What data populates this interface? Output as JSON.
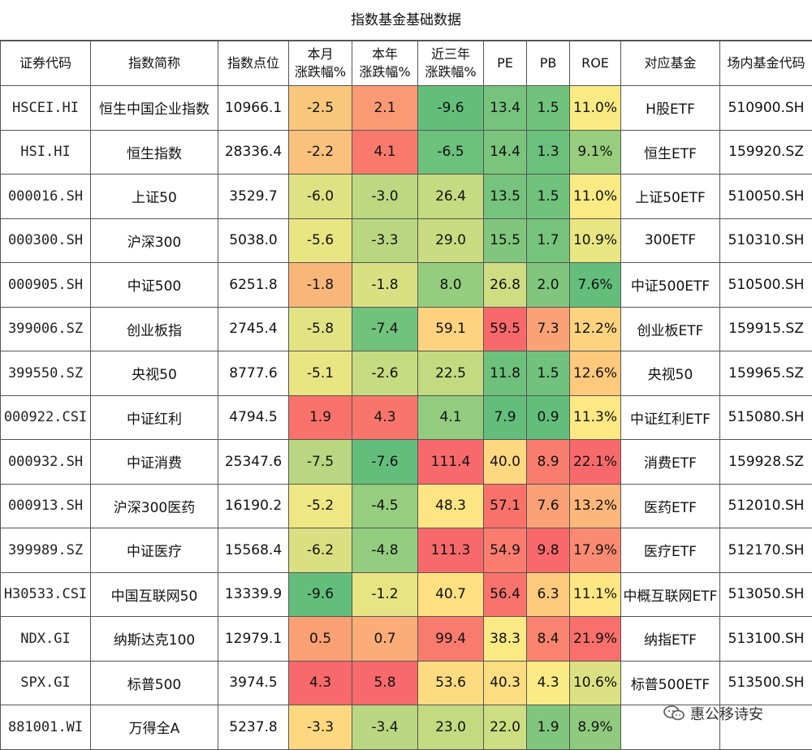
{
  "title": "指数基金基础数据",
  "columns": [
    "证券代码",
    "指数简称",
    "指数点位",
    "本月涨跌幅%",
    "本年涨跌幅%",
    "近三年涨跌幅%",
    "PE",
    "PB",
    "ROE",
    "对应基金",
    "场内基金代码"
  ],
  "header": {
    "code": "证券代码",
    "name": "指数简称",
    "points": "指数点位",
    "month_l1": "本月",
    "month_l2": "涨跌幅%",
    "year_l1": "本年",
    "year_l2": "涨跌幅%",
    "y3_l1": "近三年",
    "y3_l2": "涨跌幅%",
    "pe": "PE",
    "pb": "PB",
    "roe": "ROE",
    "fund": "对应基金",
    "fund_code": "场内基金代码"
  },
  "rows": [
    {
      "code": "HSCEI.HI",
      "name": "恒生中国企业指数",
      "points": "10966.1",
      "month": "-2.5",
      "year": "2.1",
      "y3": "-9.6",
      "pe": "13.4",
      "pb": "1.5",
      "roe": "11.0%",
      "fund": "H股ETF",
      "fund_code": "510900.SH"
    },
    {
      "code": "HSI.HI",
      "name": "恒生指数",
      "points": "28336.4",
      "month": "-2.2",
      "year": "4.1",
      "y3": "-6.5",
      "pe": "14.4",
      "pb": "1.3",
      "roe": "9.1%",
      "fund": "恒生ETF",
      "fund_code": "159920.SZ"
    },
    {
      "code": "000016.SH",
      "name": "上证50",
      "points": "3529.7",
      "month": "-6.0",
      "year": "-3.0",
      "y3": "26.4",
      "pe": "13.5",
      "pb": "1.5",
      "roe": "11.0%",
      "fund": "上证50ETF",
      "fund_code": "510050.SH"
    },
    {
      "code": "000300.SH",
      "name": "沪深300",
      "points": "5038.0",
      "month": "-5.6",
      "year": "-3.3",
      "y3": "29.0",
      "pe": "15.5",
      "pb": "1.7",
      "roe": "10.9%",
      "fund": "300ETF",
      "fund_code": "510310.SH"
    },
    {
      "code": "000905.SH",
      "name": "中证500",
      "points": "6251.8",
      "month": "-1.8",
      "year": "-1.8",
      "y3": "8.0",
      "pe": "26.8",
      "pb": "2.0",
      "roe": "7.6%",
      "fund": "中证500ETF",
      "fund_code": "510500.SH"
    },
    {
      "code": "399006.SZ",
      "name": "创业板指",
      "points": "2745.4",
      "month": "-5.8",
      "year": "-7.4",
      "y3": "59.1",
      "pe": "59.5",
      "pb": "7.3",
      "roe": "12.2%",
      "fund": "创业板ETF",
      "fund_code": "159915.SZ"
    },
    {
      "code": "399550.SZ",
      "name": "央视50",
      "points": "8777.6",
      "month": "-5.1",
      "year": "-2.6",
      "y3": "22.5",
      "pe": "11.8",
      "pb": "1.5",
      "roe": "12.6%",
      "fund": "央视50",
      "fund_code": "159965.SZ"
    },
    {
      "code": "000922.CSI",
      "name": "中证红利",
      "points": "4794.5",
      "month": "1.9",
      "year": "4.3",
      "y3": "4.1",
      "pe": "7.9",
      "pb": "0.9",
      "roe": "11.3%",
      "fund": "中证红利ETF",
      "fund_code": "515080.SH"
    },
    {
      "code": "000932.SH",
      "name": "中证消费",
      "points": "25347.6",
      "month": "-7.5",
      "year": "-7.6",
      "y3": "111.4",
      "pe": "40.0",
      "pb": "8.9",
      "roe": "22.1%",
      "fund": "消费ETF",
      "fund_code": "159928.SZ"
    },
    {
      "code": "000913.SH",
      "name": "沪深300医药",
      "points": "16190.2",
      "month": "-5.2",
      "year": "-4.5",
      "y3": "48.3",
      "pe": "57.1",
      "pb": "7.6",
      "roe": "13.2%",
      "fund": "医药ETF",
      "fund_code": "512010.SH"
    },
    {
      "code": "399989.SZ",
      "name": "中证医疗",
      "points": "15568.4",
      "month": "-6.2",
      "year": "-4.8",
      "y3": "111.3",
      "pe": "54.9",
      "pb": "9.8",
      "roe": "17.9%",
      "fund": "医疗ETF",
      "fund_code": "512170.SH"
    },
    {
      "code": "H30533.CSI",
      "name": "中国互联网50",
      "points": "13339.9",
      "month": "-9.6",
      "year": "-1.2",
      "y3": "40.7",
      "pe": "56.4",
      "pb": "6.3",
      "roe": "11.1%",
      "fund": "中概互联网ETF",
      "fund_code": "513050.SH"
    },
    {
      "code": "NDX.GI",
      "name": "纳斯达克100",
      "points": "12979.1",
      "month": "0.5",
      "year": "0.7",
      "y3": "99.4",
      "pe": "38.3",
      "pb": "8.4",
      "roe": "21.9%",
      "fund": "纳指ETF",
      "fund_code": "513100.SH"
    },
    {
      "code": "SPX.GI",
      "name": "标普500",
      "points": "3974.5",
      "month": "4.3",
      "year": "5.8",
      "y3": "53.6",
      "pe": "40.3",
      "pb": "4.3",
      "roe": "10.6%",
      "fund": "标普500ETF",
      "fund_code": "513500.SH"
    },
    {
      "code": "881001.WI",
      "name": "万得全A",
      "points": "5237.8",
      "month": "-3.3",
      "year": "-3.4",
      "y3": "23.0",
      "pe": "22.0",
      "pb": "1.9",
      "roe": "8.9%",
      "fund": "",
      "fund_code": ""
    }
  ],
  "colors": {
    "month": [
      "#f9c77c",
      "#f9c17b",
      "#dfe282",
      "#e9e583",
      "#f8b679",
      "#e2e383",
      "#eae583",
      "#f8726b",
      "#b9d780",
      "#efe784",
      "#dae081",
      "#63be7b",
      "#f9a074",
      "#f8696b",
      "#fed880"
    ],
    "year": [
      "#fa9a74",
      "#f9796d",
      "#bdd881",
      "#b9d780",
      "#d8e082",
      "#70c27c",
      "#c7db81",
      "#f8756c",
      "#63be7b",
      "#97cd7e",
      "#92cc7e",
      "#e6e483",
      "#fcad77",
      "#f8696b",
      "#bad781"
    ],
    "y3": [
      "#63be7b",
      "#6cc17c",
      "#c5da81",
      "#c9dc81",
      "#94cd7e",
      "#fed27f",
      "#c4da81",
      "#92cc7e",
      "#f8696b",
      "#fee583",
      "#f8696b",
      "#fee082",
      "#f97b6e",
      "#fddc81",
      "#c3da81"
    ],
    "pe": [
      "#75c37c",
      "#7ac47c",
      "#75c37c",
      "#80c67d",
      "#cfdd82",
      "#f8696b",
      "#6ec17c",
      "#63be7b",
      "#fed781",
      "#f8726b",
      "#f97c6e",
      "#f8736c",
      "#fbe983",
      "#fddd81",
      "#ccdd82"
    ],
    "pb": [
      "#70c27c",
      "#6bc07c",
      "#70c27c",
      "#76c37c",
      "#80c67d",
      "#fba176",
      "#70c27c",
      "#63be7b",
      "#f87d6e",
      "#fba176",
      "#f8696b",
      "#fdc97d",
      "#f9836f",
      "#fbeb84",
      "#81c67d"
    ],
    "roe": [
      "#f9ea84",
      "#98cd7e",
      "#f9ea84",
      "#e8e583",
      "#63be7b",
      "#fed37f",
      "#fec87d",
      "#fee883",
      "#f8696b",
      "#fdb77a",
      "#fa8a71",
      "#fee683",
      "#f86f6c",
      "#dbe182",
      "#8fca7e"
    ]
  },
  "watermark": "惠公移诗安",
  "watermark_icon": "chat-bubbles-icon"
}
